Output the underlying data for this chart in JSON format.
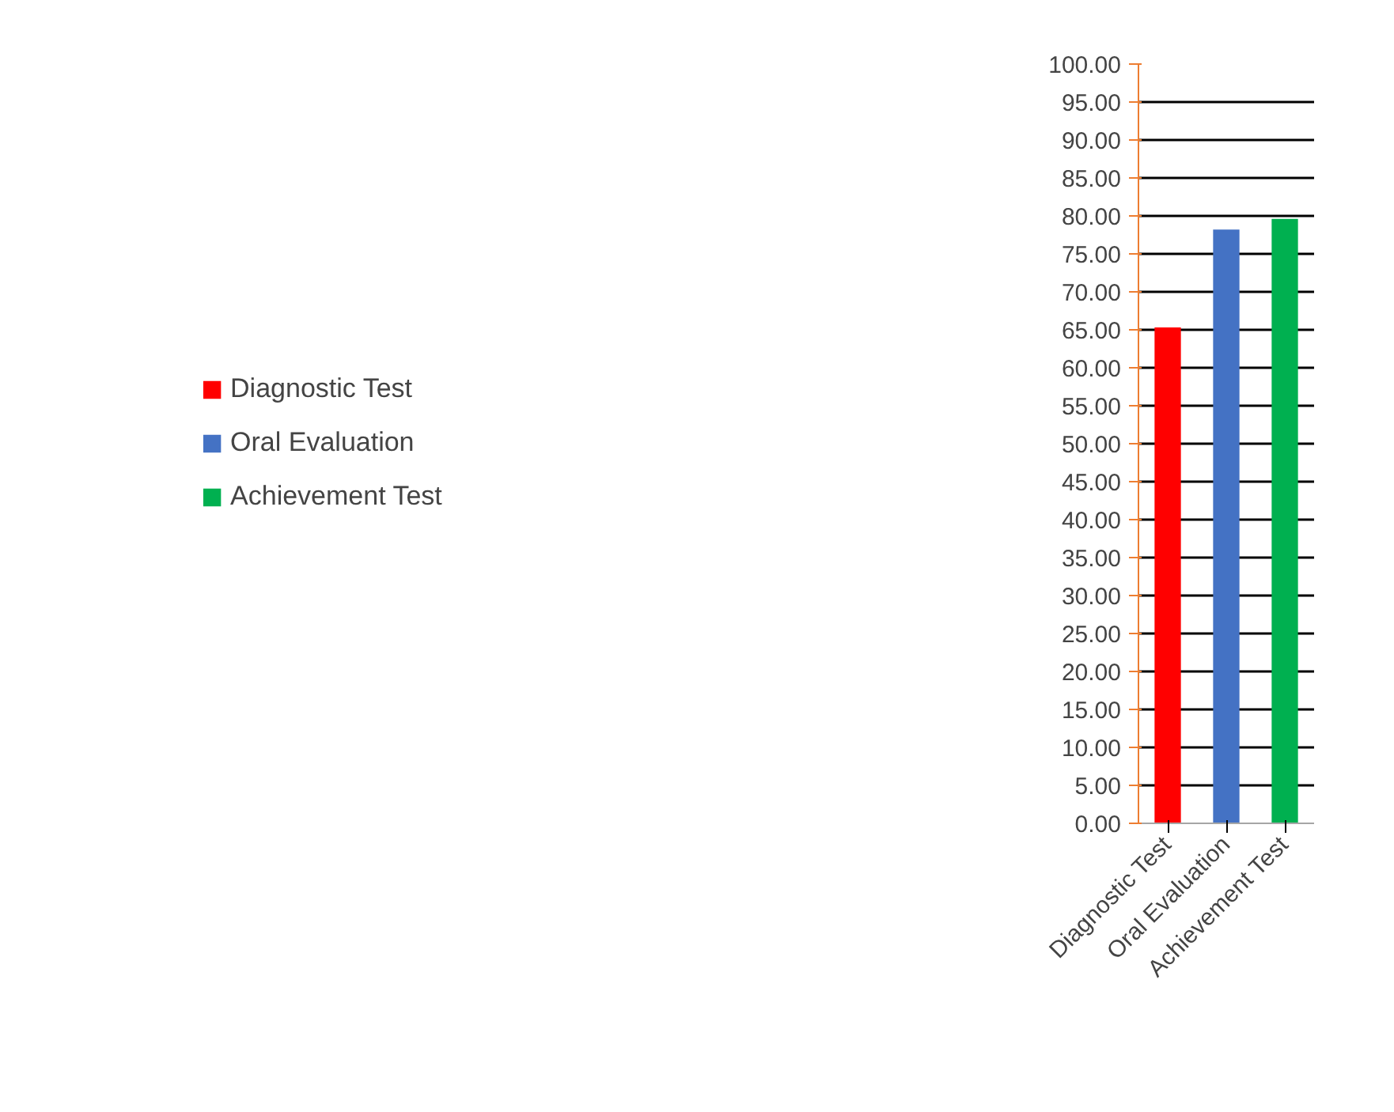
{
  "chart_data": {
    "type": "bar",
    "categories": [
      "Diagnostic Test",
      "Oral Evaluation",
      "Achievement Test"
    ],
    "series": [
      {
        "name": "Diagnostic Test",
        "color": "#ff0000",
        "values": [
          65.3,
          null,
          null
        ]
      },
      {
        "name": "Oral Evaluation",
        "color": "#4472c4",
        "values": [
          null,
          78.2,
          null
        ]
      },
      {
        "name": "Achievement Test",
        "color": "#00b050",
        "values": [
          null,
          null,
          79.6
        ]
      }
    ],
    "ylim": [
      0,
      100
    ],
    "yticks": [
      {
        "value": 0,
        "label": "0.00"
      },
      {
        "value": 5,
        "label": "5.00"
      },
      {
        "value": 10,
        "label": "10.00"
      },
      {
        "value": 15,
        "label": "15.00"
      },
      {
        "value": 20,
        "label": "20.00"
      },
      {
        "value": 25,
        "label": "25.00"
      },
      {
        "value": 30,
        "label": "30.00"
      },
      {
        "value": 35,
        "label": "35.00"
      },
      {
        "value": 40,
        "label": "40.00"
      },
      {
        "value": 45,
        "label": "45.00"
      },
      {
        "value": 50,
        "label": "50.00"
      },
      {
        "value": 55,
        "label": "55.00"
      },
      {
        "value": 60,
        "label": "60.00"
      },
      {
        "value": 65,
        "label": "65.00"
      },
      {
        "value": 70,
        "label": "70.00"
      },
      {
        "value": 75,
        "label": "75.00"
      },
      {
        "value": 80,
        "label": "80.00"
      },
      {
        "value": 85,
        "label": "85.00"
      },
      {
        "value": 90,
        "label": "90.00"
      },
      {
        "value": 95,
        "label": "95.00"
      },
      {
        "value": 100,
        "label": "100.00"
      }
    ],
    "grid": "y",
    "legend": "left"
  }
}
